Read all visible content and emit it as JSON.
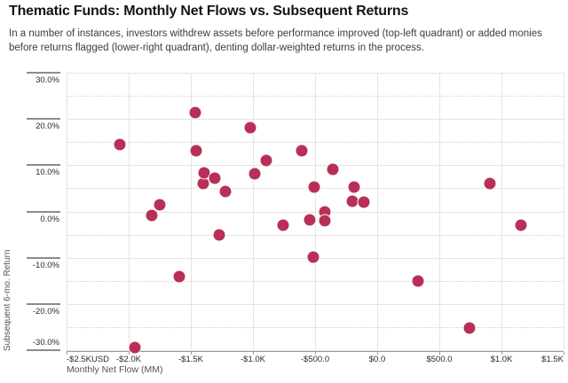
{
  "header": {
    "title": "Thematic Funds: Monthly Net Flows vs. Subsequent Returns",
    "subtitle": "In a number of instances, investors withdrew assets before performance improved (top-left quadrant) or added monies before returns flagged (lower-right quadrant), denting dollar-weighted returns in the process."
  },
  "chart_data": {
    "type": "scatter",
    "title": "Thematic Funds: Monthly Net Flows vs. Subsequent Returns",
    "xlabel": "Monthly Net Flow (MM)",
    "ylabel": "Subsequent 6-mo. Return",
    "xlim": [
      -2500,
      1500
    ],
    "ylim": [
      -30,
      30
    ],
    "grid": "vertical majors every $500; horizontal solid majors every 10%, dotted minors every 5%",
    "legend": "none",
    "point_color": "#b93057",
    "x_ticks": [
      {
        "value": -2500,
        "label": "-$2.5KUSD"
      },
      {
        "value": -2000,
        "label": "-$2.0K"
      },
      {
        "value": -1500,
        "label": "-$1.5K"
      },
      {
        "value": -1000,
        "label": "-$1.0K"
      },
      {
        "value": -500,
        "label": "-$500.0"
      },
      {
        "value": 0,
        "label": "$0.0"
      },
      {
        "value": 500,
        "label": "$500.0"
      },
      {
        "value": 1000,
        "label": "$1.0K"
      },
      {
        "value": 1500,
        "label": "$1.5K"
      }
    ],
    "y_ticks": [
      {
        "value": 30,
        "label": "30.0%"
      },
      {
        "value": 20,
        "label": "20.0%"
      },
      {
        "value": 10,
        "label": "10.0%"
      },
      {
        "value": 0,
        "label": "0.0%"
      },
      {
        "value": -10,
        "label": "-10.0%"
      },
      {
        "value": -20,
        "label": "-20.0%"
      },
      {
        "value": -30,
        "label": "-30.0%"
      }
    ],
    "y_minor_ticks": [
      25,
      15,
      5,
      -5,
      -15,
      -25
    ],
    "points": [
      {
        "x": -2070,
        "y": 14.4
      },
      {
        "x": -1950,
        "y": -29.4
      },
      {
        "x": -1815,
        "y": -0.9
      },
      {
        "x": -1750,
        "y": 1.4
      },
      {
        "x": -1590,
        "y": -14.0
      },
      {
        "x": -1465,
        "y": 21.4
      },
      {
        "x": -1460,
        "y": 13.1
      },
      {
        "x": -1400,
        "y": 6.0
      },
      {
        "x": -1395,
        "y": 8.3
      },
      {
        "x": -1305,
        "y": 7.1
      },
      {
        "x": -1275,
        "y": -5.0
      },
      {
        "x": -1225,
        "y": 4.3
      },
      {
        "x": -1020,
        "y": 18.2
      },
      {
        "x": -985,
        "y": 8.2
      },
      {
        "x": -895,
        "y": 11.1
      },
      {
        "x": -760,
        "y": -3.0
      },
      {
        "x": -610,
        "y": 13.2
      },
      {
        "x": -540,
        "y": -1.8
      },
      {
        "x": -515,
        "y": -9.9
      },
      {
        "x": -510,
        "y": 5.3
      },
      {
        "x": -420,
        "y": -0.1
      },
      {
        "x": -420,
        "y": -2.0
      },
      {
        "x": -355,
        "y": 9.2
      },
      {
        "x": -200,
        "y": 2.2
      },
      {
        "x": -185,
        "y": 5.2
      },
      {
        "x": -105,
        "y": 2.1
      },
      {
        "x": 325,
        "y": -15.0
      },
      {
        "x": 745,
        "y": -25.3
      },
      {
        "x": 905,
        "y": 6.1
      },
      {
        "x": 1160,
        "y": -2.9
      }
    ]
  },
  "colors": {
    "point": "#b93057",
    "grid_major": "#e4e4e4",
    "grid_minor": "#d2d2d2",
    "axis_line": "#9a9a9a",
    "tick_line": "#8c8c8c",
    "title_text": "#141414",
    "subtitle_text": "#3d3d3d",
    "tick_text": "#2a2a2a",
    "axis_title_text": "#555555"
  }
}
